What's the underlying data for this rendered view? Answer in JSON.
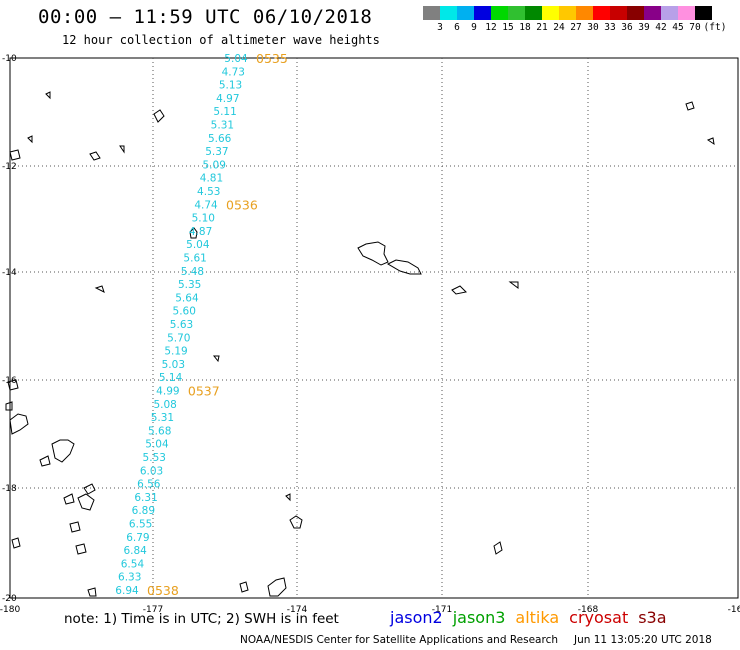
{
  "title": "00:00 – 11:59 UTC 06/10/2018",
  "subtitle": "12 hour collection of altimeter wave heights",
  "legend": {
    "colors": [
      "#808080",
      "#00e8e8",
      "#00b0f0",
      "#0000e0",
      "#00d800",
      "#30c030",
      "#008800",
      "#ffff00",
      "#ffc800",
      "#ff8800",
      "#ff0000",
      "#c80000",
      "#880000",
      "#880088",
      "#b8a0e8",
      "#ff90e0",
      "#000000"
    ],
    "labels": [
      "3",
      "6",
      "9",
      "12",
      "15",
      "18",
      "21",
      "24",
      "27",
      "30",
      "33",
      "36",
      "39",
      "42",
      "45",
      "70"
    ],
    "unit": "(ft)"
  },
  "axes": {
    "lon_labels": [
      "-180",
      "-177",
      "-174",
      "-171",
      "-168",
      "-16"
    ],
    "lat_labels": [
      "-10",
      "-12",
      "-14",
      "-16",
      "-18",
      "-20"
    ]
  },
  "track": {
    "swh": [
      "5.04",
      "4.73",
      "5.13",
      "4.97",
      "5.11",
      "5.31",
      "5.66",
      "5.37",
      "5.09",
      "4.81",
      "4.53",
      "4.74",
      "5.10",
      "4.87",
      "5.04",
      "5.61",
      "5.48",
      "5.35",
      "5.64",
      "5.60",
      "5.63",
      "5.70",
      "5.19",
      "5.03",
      "5.14",
      "4.99",
      "5.08",
      "5.31",
      "5.68",
      "5.04",
      "5.53",
      "6.03",
      "6.56",
      "6.31",
      "6.89",
      "6.55",
      "6.79",
      "6.84",
      "6.54",
      "6.33",
      "6.94"
    ],
    "time_labels": [
      {
        "text": "0535",
        "after_index": 0
      },
      {
        "text": "0536",
        "after_index": 11
      },
      {
        "text": "0537",
        "after_index": 25
      },
      {
        "text": "0538",
        "after_index": 40
      }
    ],
    "color": "#22c8dc",
    "time_color": "#e8a020"
  },
  "footer": {
    "note": "note: 1) Time is in UTC; 2) SWH is in feet",
    "satellites": [
      {
        "name": "jason2",
        "color": "#0000e0"
      },
      {
        "name": "jason3",
        "color": "#00a000"
      },
      {
        "name": "altika",
        "color": "#ff9900"
      },
      {
        "name": "cryosat",
        "color": "#cc0000"
      },
      {
        "name": "s3a",
        "color": "#880000"
      }
    ],
    "credit": "NOAA/NESDIS Center for Satellite Applications and Research",
    "timestamp": "Jun 11 13:05:20 UTC 2018"
  }
}
